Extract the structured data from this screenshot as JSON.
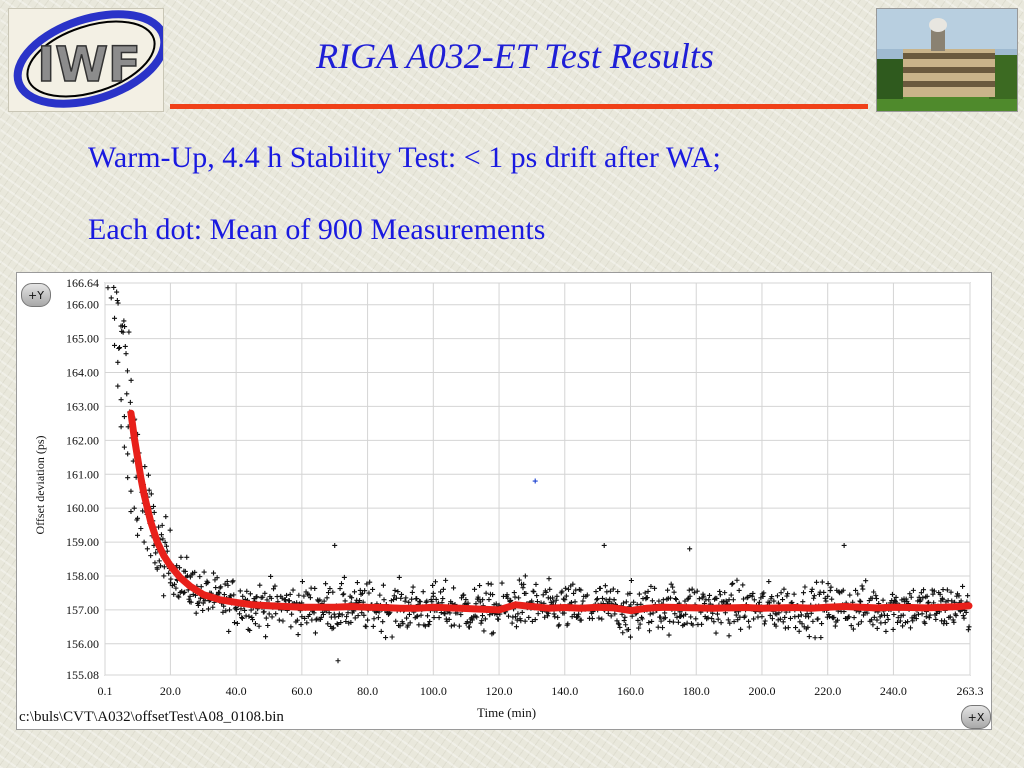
{
  "header": {
    "title": "RIGA A032-ET Test Results",
    "logo_text": "IWF",
    "subtitle_line1": "Warm-Up, 4.4 h Stability Test: < 1 ps drift after WA;",
    "subtitle_line2": "Each dot: Mean of 900 Measurements"
  },
  "colors": {
    "title_blue": "#1f1fd6",
    "accent_rule": "#f04018",
    "fit_curve": "#e8201a",
    "outlier_blue": "#1a40d0",
    "scatter_black": "#111111"
  },
  "chart_frame": {
    "y_button": "+Y",
    "x_button": "+X",
    "file_path": "c:\\buls\\CVT\\A032\\offsetTest\\A08_0108.bin"
  },
  "chart_data": {
    "type": "scatter",
    "xlabel": "Time (min)",
    "ylabel": "Offset deviation (ps)",
    "xlim": [
      0.1,
      263.3
    ],
    "ylim": [
      155.08,
      166.64
    ],
    "x_ticks": [
      "0.1",
      "20.0",
      "40.0",
      "60.0",
      "80.0",
      "100.0",
      "120.0",
      "140.0",
      "160.0",
      "180.0",
      "200.0",
      "220.0",
      "240.0",
      "263.3"
    ],
    "x_tick_values": [
      0.1,
      20,
      40,
      60,
      80,
      100,
      120,
      140,
      160,
      180,
      200,
      220,
      240,
      263.3
    ],
    "y_ticks": [
      "166.64",
      "166.00",
      "165.00",
      "164.00",
      "163.00",
      "162.00",
      "161.00",
      "160.00",
      "159.00",
      "158.00",
      "157.00",
      "156.00",
      "155.08"
    ],
    "y_tick_values": [
      166.64,
      166,
      165,
      164,
      163,
      162,
      161,
      160,
      159,
      158,
      157,
      156,
      155.08
    ],
    "grid": true,
    "series": [
      {
        "style": "scatter",
        "marker": "plus",
        "color": "#111111",
        "description_values": "dense scatter of ~1 ps spread around the fit curve",
        "x": [
          1,
          2,
          3,
          3,
          4,
          4,
          5,
          5,
          6,
          6,
          7,
          7,
          8,
          8,
          9,
          10,
          10,
          11,
          12,
          13,
          14,
          15,
          16,
          17,
          18,
          20,
          22,
          24,
          26,
          28,
          30,
          32,
          35,
          38,
          42,
          46,
          50,
          55,
          60,
          65,
          70,
          71,
          75,
          80,
          85,
          90,
          95,
          100,
          105,
          110,
          115,
          118,
          120,
          125,
          128,
          130,
          135,
          140,
          145,
          150,
          152,
          155,
          160,
          165,
          170,
          175,
          178,
          180,
          185,
          190,
          195,
          200,
          205,
          210,
          215,
          220,
          225,
          230,
          235,
          240,
          245,
          250,
          255,
          260,
          263
        ],
        "y": [
          166.5,
          166.2,
          165.6,
          164.8,
          164.3,
          163.6,
          163.2,
          162.4,
          162.7,
          161.8,
          161.6,
          160.9,
          160.5,
          159.9,
          160.0,
          159.7,
          159.2,
          159.4,
          159.0,
          158.8,
          158.6,
          158.9,
          158.2,
          158.3,
          158.0,
          157.8,
          157.9,
          157.5,
          157.4,
          157.6,
          157.2,
          157.5,
          157.3,
          157.0,
          157.4,
          156.9,
          157.2,
          157.3,
          156.8,
          157.1,
          158.9,
          155.5,
          157.2,
          156.7,
          157.3,
          157.0,
          156.8,
          157.4,
          157.0,
          156.6,
          157.3,
          156.9,
          157.1,
          156.8,
          158.0,
          157.2,
          156.9,
          157.3,
          156.7,
          157.0,
          158.9,
          157.3,
          156.2,
          157.0,
          157.3,
          156.8,
          158.8,
          157.1,
          156.9,
          157.3,
          157.0,
          156.8,
          157.2,
          157.0,
          156.9,
          157.4,
          158.9,
          157.0,
          156.7,
          157.2,
          157.1,
          156.8,
          157.3,
          157.0,
          156.5
        ]
      },
      {
        "style": "outlier",
        "marker": "plus",
        "color": "#1a40d0",
        "x": [
          131
        ],
        "y": [
          160.8
        ]
      },
      {
        "style": "line",
        "color": "#e8201a",
        "x": [
          8,
          9,
          10,
          11,
          12,
          14,
          16,
          18,
          20,
          23,
          26,
          30,
          35,
          40,
          45,
          50,
          55,
          60,
          65,
          70,
          75,
          80,
          85,
          90,
          95,
          100,
          105,
          110,
          115,
          120,
          125,
          130,
          135,
          140,
          145,
          150,
          155,
          160,
          165,
          170,
          175,
          180,
          185,
          190,
          195,
          200,
          205,
          210,
          215,
          220,
          225,
          230,
          235,
          240,
          245,
          250,
          255,
          260,
          263
        ],
        "y": [
          162.8,
          162.1,
          161.5,
          160.9,
          160.4,
          159.6,
          159.0,
          158.6,
          158.3,
          157.95,
          157.7,
          157.45,
          157.3,
          157.22,
          157.15,
          157.12,
          157.1,
          157.08,
          157.08,
          157.08,
          157.1,
          157.08,
          157.07,
          157.05,
          157.05,
          157.08,
          157.06,
          157.04,
          157.02,
          157.0,
          157.15,
          157.1,
          157.05,
          157.07,
          157.05,
          157.08,
          157.06,
          156.98,
          157.05,
          157.08,
          157.07,
          157.06,
          157.05,
          157.06,
          157.07,
          157.05,
          157.06,
          157.07,
          157.05,
          157.08,
          157.1,
          157.08,
          157.06,
          157.08,
          157.07,
          157.06,
          157.08,
          157.1,
          157.12
        ]
      }
    ]
  }
}
